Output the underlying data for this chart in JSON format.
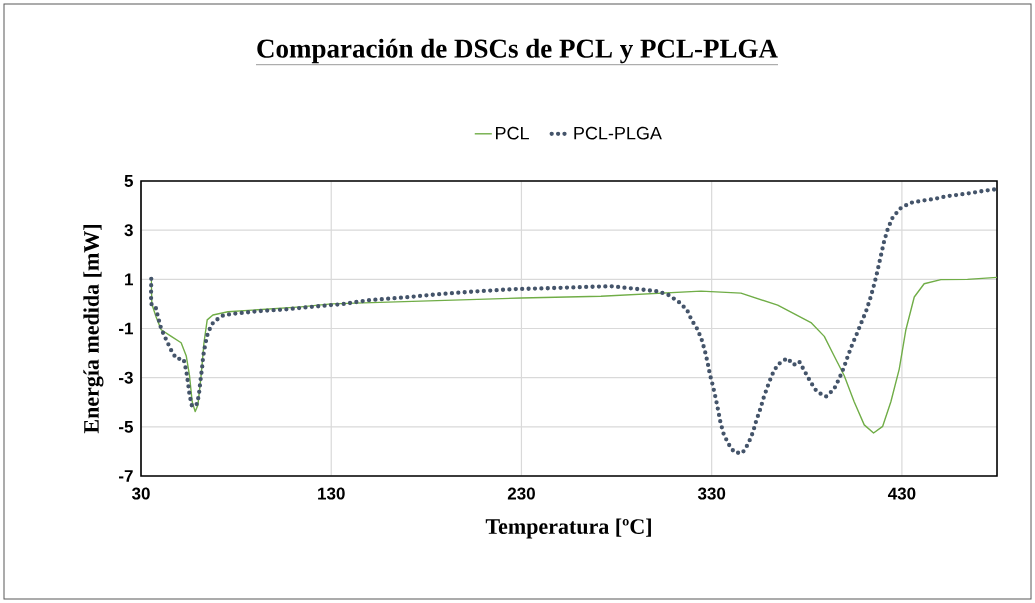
{
  "chart_data": {
    "type": "line",
    "title": "Comparación de DSCs de PCL y PCL-PLGA",
    "xlabel": "Temperatura [ºC]",
    "ylabel": "Energía medida [mW]",
    "xlim": [
      30,
      480
    ],
    "ylim": [
      -7,
      5
    ],
    "xticks": [
      30,
      130,
      230,
      330,
      430
    ],
    "yticks": [
      -7,
      -5,
      -3,
      -1,
      1,
      3,
      5
    ],
    "grid": true,
    "legend": "top",
    "series": [
      {
        "name": "PCL",
        "color": "#70ad47",
        "line_style": "solid",
        "x": [
          35.4,
          35.7,
          37.9,
          40.6,
          45.9,
          51.1,
          53.8,
          55.5,
          56.9,
          58.5,
          59.9,
          61.6,
          63.1,
          64.8,
          67.8,
          75.7,
          114,
          130,
          229.8,
          271.8,
          324.4,
          345.4,
          364.7,
          382.2,
          389.2,
          394.4,
          399.7,
          404.9,
          410.2,
          415.1,
          419.9,
          424.2,
          428.6,
          432.1,
          436.5,
          441.7,
          450.5,
          464.5,
          480
        ],
        "values": [
          0.95,
          0.0,
          -0.52,
          -1.05,
          -1.32,
          -1.58,
          -2.12,
          -2.92,
          -3.98,
          -4.38,
          -4.12,
          -2.92,
          -1.58,
          -0.65,
          -0.45,
          -0.32,
          -0.12,
          0.0,
          0.24,
          0.31,
          0.52,
          0.44,
          -0.05,
          -0.76,
          -1.32,
          -2.12,
          -2.92,
          -3.98,
          -4.92,
          -5.25,
          -4.98,
          -3.98,
          -2.65,
          -1.05,
          0.28,
          0.82,
          0.99,
          1.0,
          1.08
        ]
      },
      {
        "name": "PCL-PLGA",
        "color": "#44546a",
        "line_style": "dotted",
        "x": [
          35.4,
          35.3,
          35.3,
          37.6,
          38.9,
          40.6,
          43.2,
          45.9,
          48.5,
          52.4,
          53.8,
          54.7,
          55.5,
          56.8,
          59.6,
          60.6,
          61.3,
          62.1,
          62.7,
          63.8,
          65.2,
          68.1,
          73.4,
          79.7,
          92.5,
          105.4,
          118.0,
          136.9,
          149.2,
          167.9,
          187.2,
          206.1,
          225.6,
          244.7,
          263.9,
          277.1,
          289.3,
          301.6,
          307.4,
          312.7,
          317,
          319.5,
          322.6,
          324.9,
          326.5,
          327.9,
          329.1,
          330.7,
          332.1,
          333.3,
          334.5,
          336.1,
          338.6,
          341.9,
          346.1,
          349.2,
          351.7,
          353.4,
          355.5,
          357.3,
          359.4,
          361.7,
          364.7,
          369.7,
          373.2,
          376,
          379,
          382,
          385.3,
          390.1,
          394.3,
          397.1,
          399.5,
          401.6,
          403.9,
          406.4,
          408.8,
          411.2,
          413.2,
          414.9,
          416.5,
          417.9,
          419.3,
          420.7,
          422.5,
          424.9,
          428.9,
          434.4,
          440.7,
          447,
          453.3,
          459.6,
          466.1,
          472.4,
          478.9
        ],
        "values": [
          1.02,
          0.51,
          0.0,
          -0.1,
          -0.52,
          -1.01,
          -1.45,
          -1.89,
          -2.22,
          -2.25,
          -2.72,
          -3.21,
          -3.69,
          -4.17,
          -4.06,
          -3.58,
          -3.09,
          -2.61,
          -2.12,
          -1.64,
          -1.16,
          -0.73,
          -0.46,
          -0.39,
          -0.29,
          -0.23,
          -0.13,
          0.0,
          0.15,
          0.26,
          0.4,
          0.51,
          0.6,
          0.64,
          0.69,
          0.72,
          0.62,
          0.51,
          0.36,
          0.08,
          -0.24,
          -0.66,
          -1.04,
          -1.49,
          -1.93,
          -2.4,
          -2.88,
          -3.35,
          -3.83,
          -4.29,
          -4.77,
          -5.25,
          -5.67,
          -6.04,
          -6.07,
          -5.69,
          -5.22,
          -4.76,
          -4.29,
          -3.82,
          -3.36,
          -2.89,
          -2.47,
          -2.21,
          -2.48,
          -2.34,
          -2.76,
          -3.18,
          -3.57,
          -3.77,
          -3.47,
          -3.03,
          -2.59,
          -2.12,
          -1.65,
          -1.2,
          -0.74,
          -0.29,
          0.18,
          0.64,
          1.12,
          1.6,
          2.08,
          2.56,
          3.03,
          3.48,
          3.87,
          4.11,
          4.2,
          4.27,
          4.38,
          4.44,
          4.51,
          4.59,
          4.66
        ]
      }
    ]
  }
}
